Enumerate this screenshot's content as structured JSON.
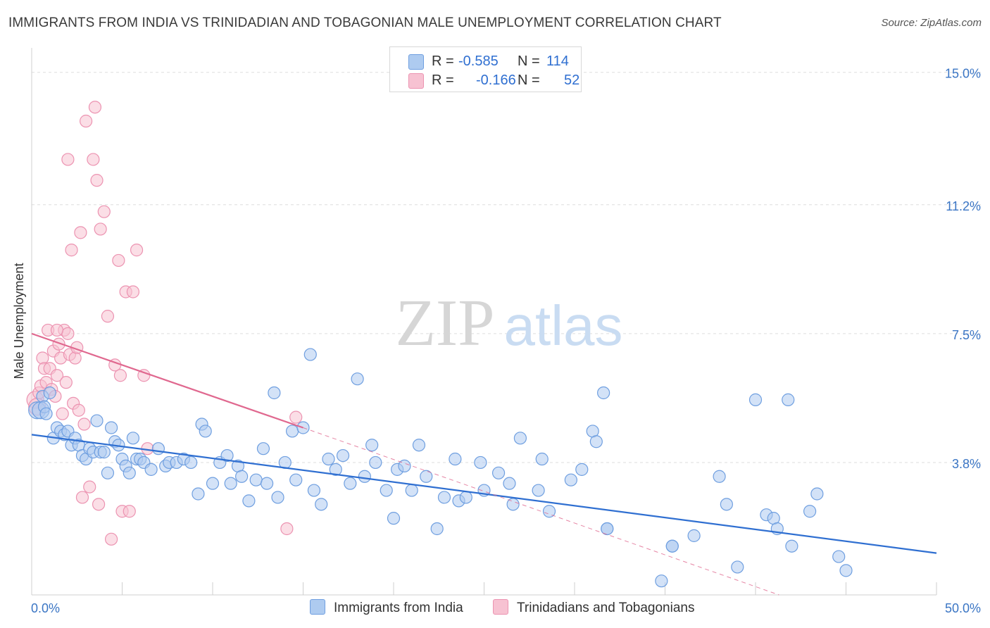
{
  "header": {
    "title": "IMMIGRANTS FROM INDIA VS TRINIDADIAN AND TOBAGONIAN MALE UNEMPLOYMENT CORRELATION CHART",
    "source": "Source: ZipAtlas.com"
  },
  "legend": {
    "rows": [
      {
        "r_label": "R =",
        "r_value": "-0.585",
        "n_label": "N =",
        "n_value": "114"
      },
      {
        "r_label": "R =",
        "r_value": "-0.166",
        "n_label": "N =",
        "n_value": "52"
      }
    ]
  },
  "watermark": {
    "zip": "ZIP",
    "atlas": "atlas"
  },
  "colors": {
    "blue": "#2f6fd1",
    "blue_fill": "#aecbf0",
    "blue_stroke": "#6f9fe0",
    "pink": "#e0688f",
    "pink_fill": "#f7c2d2",
    "pink_stroke": "#ec93b1",
    "tick_label": "#3a75c4",
    "grid": "#dddddd"
  },
  "chart_data": {
    "type": "scatter",
    "xlabel": "",
    "ylabel": "Male Unemployment",
    "x_tick_labels": [
      "0.0%",
      "50.0%"
    ],
    "y_tick_labels": [
      "3.8%",
      "7.5%",
      "11.2%",
      "15.0%"
    ],
    "y_ticks": [
      3.8,
      7.5,
      11.2,
      15.0
    ],
    "xlim": [
      0,
      50
    ],
    "ylim": [
      0,
      15.5
    ],
    "grid": "horizontal dashed",
    "legend_position": "bottom-center",
    "series": [
      {
        "name": "Immigrants from India",
        "color": "blue",
        "trend": {
          "x0": 0,
          "y0": 4.6,
          "x1": 50,
          "y1": 1.2
        },
        "points": [
          [
            0.3,
            5.3
          ],
          [
            0.5,
            5.3
          ],
          [
            0.6,
            5.7
          ],
          [
            0.7,
            5.4
          ],
          [
            0.8,
            5.2
          ],
          [
            1.0,
            5.8
          ],
          [
            1.2,
            4.5
          ],
          [
            1.4,
            4.8
          ],
          [
            1.6,
            4.7
          ],
          [
            1.8,
            4.6
          ],
          [
            2.0,
            4.7
          ],
          [
            2.2,
            4.3
          ],
          [
            2.4,
            4.5
          ],
          [
            2.6,
            4.3
          ],
          [
            2.8,
            4.0
          ],
          [
            3.0,
            3.9
          ],
          [
            3.2,
            4.2
          ],
          [
            3.4,
            4.1
          ],
          [
            3.6,
            5.0
          ],
          [
            3.8,
            4.1
          ],
          [
            4.0,
            4.1
          ],
          [
            4.2,
            3.5
          ],
          [
            4.4,
            4.8
          ],
          [
            4.6,
            4.4
          ],
          [
            4.8,
            4.3
          ],
          [
            5.0,
            3.9
          ],
          [
            5.2,
            3.7
          ],
          [
            5.4,
            3.5
          ],
          [
            5.6,
            4.5
          ],
          [
            5.8,
            3.9
          ],
          [
            6.0,
            3.9
          ],
          [
            6.2,
            3.8
          ],
          [
            6.6,
            3.6
          ],
          [
            7.0,
            4.2
          ],
          [
            7.4,
            3.7
          ],
          [
            7.6,
            3.8
          ],
          [
            8.0,
            3.8
          ],
          [
            8.4,
            3.9
          ],
          [
            8.8,
            3.8
          ],
          [
            9.2,
            2.9
          ],
          [
            9.4,
            4.9
          ],
          [
            9.6,
            4.7
          ],
          [
            10.0,
            3.2
          ],
          [
            10.4,
            3.8
          ],
          [
            10.8,
            4.0
          ],
          [
            11.0,
            3.2
          ],
          [
            11.4,
            3.7
          ],
          [
            11.6,
            3.4
          ],
          [
            12.0,
            2.7
          ],
          [
            12.4,
            3.3
          ],
          [
            12.8,
            4.2
          ],
          [
            13.0,
            3.2
          ],
          [
            13.4,
            5.8
          ],
          [
            13.6,
            2.8
          ],
          [
            14.0,
            3.8
          ],
          [
            14.4,
            4.7
          ],
          [
            14.6,
            3.3
          ],
          [
            15.0,
            4.8
          ],
          [
            15.4,
            6.9
          ],
          [
            15.6,
            3.0
          ],
          [
            16.0,
            2.6
          ],
          [
            16.4,
            3.9
          ],
          [
            16.8,
            3.6
          ],
          [
            17.2,
            4.0
          ],
          [
            17.6,
            3.2
          ],
          [
            18.0,
            6.2
          ],
          [
            18.4,
            3.4
          ],
          [
            18.8,
            4.3
          ],
          [
            19.0,
            3.8
          ],
          [
            19.6,
            3.0
          ],
          [
            20.0,
            2.2
          ],
          [
            20.2,
            3.6
          ],
          [
            20.6,
            3.7
          ],
          [
            21.0,
            3.0
          ],
          [
            21.4,
            4.3
          ],
          [
            21.8,
            3.4
          ],
          [
            22.4,
            1.9
          ],
          [
            22.8,
            2.8
          ],
          [
            23.4,
            3.9
          ],
          [
            23.6,
            2.7
          ],
          [
            24.0,
            2.8
          ],
          [
            24.8,
            3.8
          ],
          [
            25.0,
            3.0
          ],
          [
            25.8,
            3.5
          ],
          [
            26.4,
            3.2
          ],
          [
            26.6,
            2.6
          ],
          [
            27.0,
            4.5
          ],
          [
            28.0,
            3.0
          ],
          [
            28.2,
            3.9
          ],
          [
            28.6,
            2.4
          ],
          [
            29.8,
            3.3
          ],
          [
            30.4,
            3.6
          ],
          [
            31.0,
            4.7
          ],
          [
            31.2,
            4.4
          ],
          [
            31.6,
            5.8
          ],
          [
            31.8,
            1.9
          ],
          [
            34.8,
            0.4
          ],
          [
            35.4,
            1.4
          ],
          [
            36.6,
            1.7
          ],
          [
            38.0,
            3.4
          ],
          [
            38.4,
            2.6
          ],
          [
            39.0,
            0.8
          ],
          [
            40.6,
            2.3
          ],
          [
            41.0,
            2.2
          ],
          [
            41.2,
            1.9
          ],
          [
            42.0,
            1.4
          ],
          [
            43.0,
            2.4
          ],
          [
            43.4,
            2.9
          ],
          [
            44.6,
            1.1
          ],
          [
            45.0,
            0.7
          ],
          [
            40.0,
            5.6
          ],
          [
            41.8,
            5.6
          ],
          [
            31.8,
            1.9
          ],
          [
            35.4,
            1.4
          ]
        ]
      },
      {
        "name": "Trinidadians and Tobagonians",
        "color": "pink",
        "trend": {
          "x0": 0,
          "y0": 7.5,
          "x1": 15,
          "y1": 4.8,
          "dash_x1": 41.3,
          "dash_y1": 0
        },
        "points": [
          [
            0.2,
            5.6
          ],
          [
            0.3,
            5.4
          ],
          [
            0.4,
            5.8
          ],
          [
            0.5,
            6.0
          ],
          [
            0.6,
            6.8
          ],
          [
            0.7,
            6.5
          ],
          [
            0.8,
            6.1
          ],
          [
            0.9,
            7.6
          ],
          [
            1.0,
            6.5
          ],
          [
            1.1,
            5.9
          ],
          [
            1.2,
            7.0
          ],
          [
            1.3,
            5.7
          ],
          [
            1.4,
            6.3
          ],
          [
            1.5,
            7.2
          ],
          [
            1.6,
            6.8
          ],
          [
            1.7,
            5.2
          ],
          [
            1.8,
            7.6
          ],
          [
            1.9,
            6.1
          ],
          [
            2.0,
            7.5
          ],
          [
            2.1,
            6.9
          ],
          [
            2.2,
            9.9
          ],
          [
            2.3,
            5.5
          ],
          [
            2.4,
            6.8
          ],
          [
            2.5,
            7.1
          ],
          [
            2.6,
            5.3
          ],
          [
            2.7,
            10.4
          ],
          [
            2.8,
            2.8
          ],
          [
            2.9,
            4.9
          ],
          [
            3.0,
            13.6
          ],
          [
            3.2,
            3.1
          ],
          [
            3.4,
            12.5
          ],
          [
            3.6,
            11.9
          ],
          [
            3.7,
            2.6
          ],
          [
            3.8,
            10.5
          ],
          [
            4.0,
            11.0
          ],
          [
            4.2,
            8.0
          ],
          [
            4.4,
            1.6
          ],
          [
            4.6,
            6.6
          ],
          [
            4.8,
            9.6
          ],
          [
            5.0,
            2.4
          ],
          [
            5.2,
            8.7
          ],
          [
            5.4,
            2.4
          ],
          [
            5.6,
            8.7
          ],
          [
            5.8,
            9.9
          ],
          [
            6.2,
            6.3
          ],
          [
            6.4,
            4.2
          ],
          [
            14.1,
            1.9
          ],
          [
            14.6,
            5.1
          ],
          [
            3.5,
            14.0
          ],
          [
            4.9,
            6.3
          ],
          [
            2.0,
            12.5
          ],
          [
            1.4,
            7.6
          ]
        ]
      }
    ]
  },
  "bottom_legend": {
    "items": [
      {
        "label": "Immigrants from India"
      },
      {
        "label": "Trinidadians and Tobagonians"
      }
    ]
  }
}
